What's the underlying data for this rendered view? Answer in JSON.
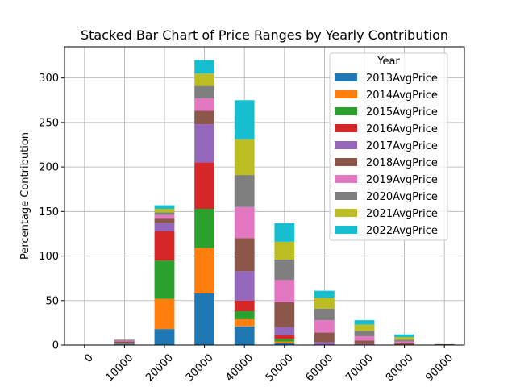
{
  "chart_data": {
    "type": "bar",
    "stacked": true,
    "title": "Stacked Bar Chart of Price Ranges by Yearly Contribution",
    "xlabel": "",
    "ylabel": "Percentage Contribution",
    "categories": [
      "0",
      "10000",
      "20000",
      "30000",
      "40000",
      "50000",
      "60000",
      "70000",
      "80000",
      "90000"
    ],
    "ylim": [
      0,
      335
    ],
    "yticks": [
      0,
      50,
      100,
      150,
      200,
      250,
      300
    ],
    "grid": true,
    "legend": {
      "title": "Year",
      "placement": "top-right"
    },
    "series": [
      {
        "name": "2013AvgPrice",
        "color": "#1f77b4",
        "values": [
          0,
          0,
          18,
          58,
          21,
          2,
          0,
          0,
          0,
          0
        ]
      },
      {
        "name": "2014AvgPrice",
        "color": "#ff7f0e",
        "values": [
          0,
          0,
          34,
          51,
          8,
          2,
          0,
          0,
          0,
          0
        ]
      },
      {
        "name": "2015AvgPrice",
        "color": "#2ca02c",
        "values": [
          0,
          1,
          43,
          44,
          9,
          3,
          0,
          0,
          0,
          0
        ]
      },
      {
        "name": "2016AvgPrice",
        "color": "#d62728",
        "values": [
          0,
          0,
          33,
          52,
          12,
          4,
          0,
          0,
          0,
          0
        ]
      },
      {
        "name": "2017AvgPrice",
        "color": "#9467bd",
        "values": [
          0,
          1,
          9,
          43,
          33,
          9,
          3,
          1,
          0,
          0
        ]
      },
      {
        "name": "2018AvgPrice",
        "color": "#8c564b",
        "values": [
          0,
          2,
          5,
          15,
          37,
          28,
          11,
          4,
          2,
          1
        ]
      },
      {
        "name": "2019AvgPrice",
        "color": "#e377c2",
        "values": [
          0,
          1,
          4,
          14,
          35,
          25,
          14,
          5,
          2,
          0
        ]
      },
      {
        "name": "2020AvgPrice",
        "color": "#7f7f7f",
        "values": [
          0,
          1,
          3,
          14,
          36,
          23,
          13,
          6,
          2,
          0
        ]
      },
      {
        "name": "2021AvgPrice",
        "color": "#bcbd22",
        "values": [
          0,
          0,
          4,
          14,
          40,
          20,
          12,
          7,
          3,
          0
        ]
      },
      {
        "name": "2022AvgPrice",
        "color": "#17becf",
        "values": [
          0,
          0,
          4,
          15,
          44,
          21,
          8,
          5,
          3,
          0
        ]
      }
    ]
  }
}
